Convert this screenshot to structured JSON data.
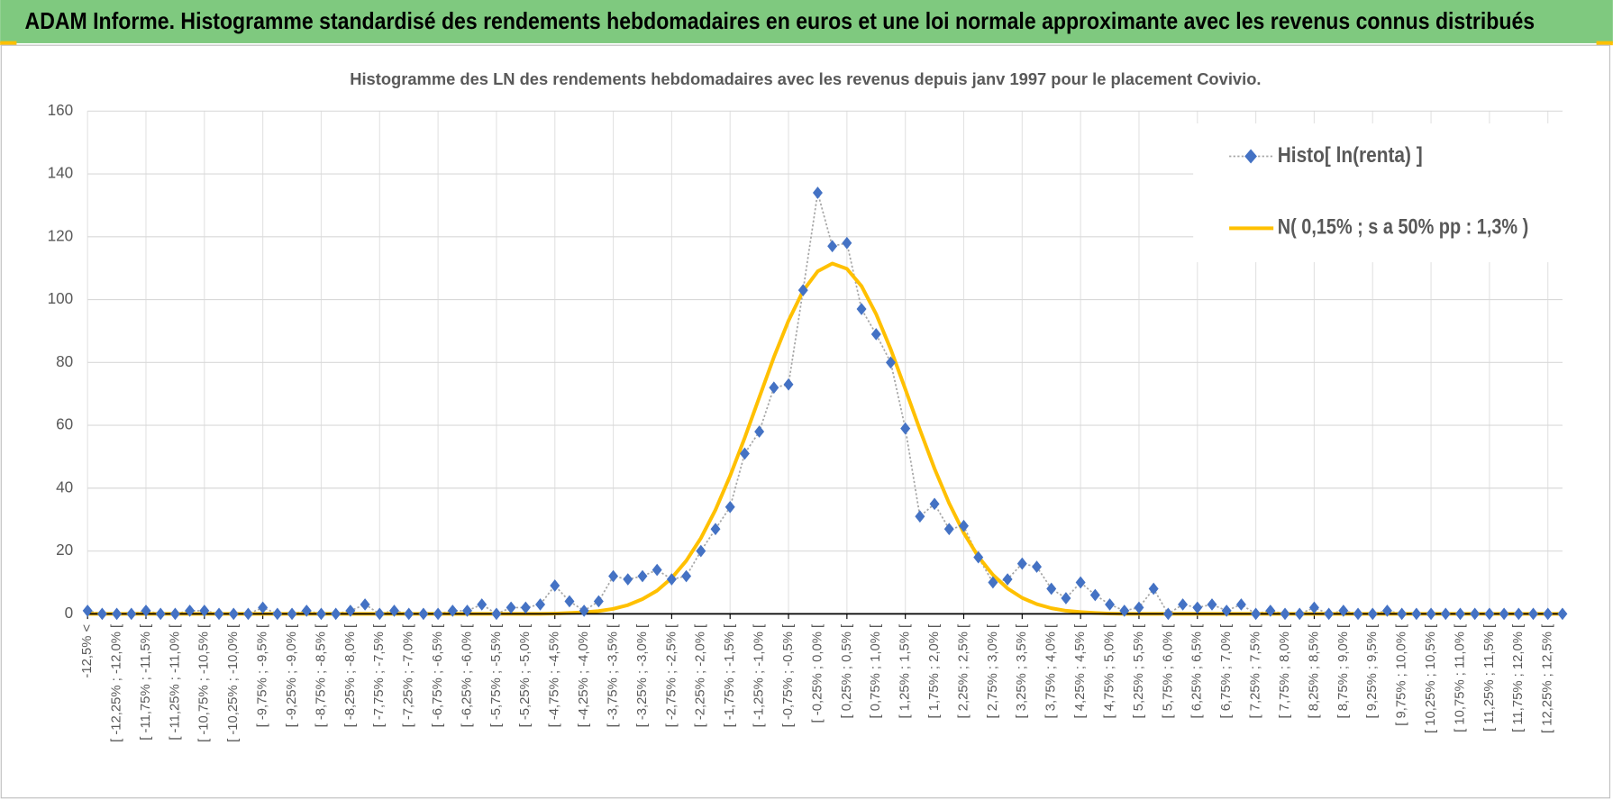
{
  "header": {
    "title": "ADAM Informe. Histogramme standardisé des rendements hebdomadaires en euros et une loi normale approximante avec les revenus connus distribués"
  },
  "chart_data": {
    "type": "line",
    "title": "Histogramme des LN des rendements hebdomadaires avec les revenus depuis janv 1997 pour le placement Covivio.",
    "categories": [
      "-12,5% <",
      null,
      "[ -12,25% ; -12,0% [",
      null,
      "[ -11,75% ; -11,5% [",
      null,
      "[ -11,25% ; -11,0% [",
      null,
      "[ -10,75% ; -10,5% [",
      null,
      "[ -10,25% ; -10,0% [",
      null,
      "[ -9,75% ; -9,5% [",
      null,
      "[ -9,25% ; -9,0% [",
      null,
      "[ -8,75% ; -8,5% [",
      null,
      "[ -8,25% ; -8,0% [",
      null,
      "[ -7,75% ; -7,5% [",
      null,
      "[ -7,25% ; -7,0% [",
      null,
      "[ -6,75% ; -6,5% [",
      null,
      "[ -6,25% ; -6,0% [",
      null,
      "[ -5,75% ; -5,5% [",
      null,
      "[ -5,25% ; -5,0% [",
      null,
      "[ -4,75% ; -4,5% [",
      null,
      "[ -4,25% ; -4,0% [",
      null,
      "[ -3,75% ; -3,5% [",
      null,
      "[ -3,25% ; -3,0% [",
      null,
      "[ -2,75% ; -2,5% [",
      null,
      "[ -2,25% ; -2,0% [",
      null,
      "[ -1,75% ; -1,5% [",
      null,
      "[ -1,25% ; -1,0% [",
      null,
      "[ -0,75% ; -0,5% [",
      null,
      "[ -0,25% ; 0,0% [",
      null,
      "[ 0,25% ; 0,5% [",
      null,
      "[ 0,75% ; 1,0% [",
      null,
      "[ 1,25% ; 1,5% [",
      null,
      "[ 1,75% ; 2,0% [",
      null,
      "[ 2,25% ; 2,5% [",
      null,
      "[ 2,75% ; 3,0% [",
      null,
      "[ 3,25% ; 3,5% [",
      null,
      "[ 3,75% ; 4,0% [",
      null,
      "[ 4,25% ; 4,5% [",
      null,
      "[ 4,75% ; 5,0% [",
      null,
      "[ 5,25% ; 5,5% [",
      null,
      "[ 5,75% ; 6,0% [",
      null,
      "[ 6,25% ; 6,5% [",
      null,
      "[ 6,75% ; 7,0% [",
      null,
      "[ 7,25% ; 7,5% [",
      null,
      "[ 7,75% ; 8,0% [",
      null,
      "[ 8,25% ; 8,5% [",
      null,
      "[ 8,75% ; 9,0% [",
      null,
      "[ 9,25% ; 9,5% [",
      null,
      "[ 9,75% ; 10,0% [",
      null,
      "[ 10,25% ; 10,5% [",
      null,
      "[ 10,75% ; 11,0% [",
      null,
      "[ 11,25% ; 11,5% [",
      null,
      "[ 11,75% ; 12,0% [",
      null,
      "[ 12,25% ; 12,5% [",
      null
    ],
    "series": [
      {
        "name": "Histo[ ln(renta) ]",
        "color": "#4472c4",
        "line_color": "#a6a6a6",
        "line_style": "dotted",
        "marker": "diamond",
        "values": [
          1,
          0,
          0,
          0,
          1,
          0,
          0,
          1,
          1,
          0,
          0,
          0,
          2,
          0,
          0,
          1,
          0,
          0,
          1,
          3,
          0,
          1,
          0,
          0,
          0,
          1,
          1,
          3,
          0,
          2,
          2,
          3,
          9,
          4,
          1,
          4,
          12,
          11,
          12,
          14,
          11,
          12,
          20,
          27,
          34,
          51,
          58,
          72,
          73,
          103,
          134,
          117,
          118,
          97,
          89,
          80,
          59,
          31,
          35,
          27,
          28,
          18,
          10,
          11,
          16,
          15,
          8,
          5,
          10,
          6,
          3,
          1,
          2,
          8,
          0,
          3,
          2,
          3,
          1,
          3,
          0,
          1,
          0,
          0,
          2,
          0,
          1,
          0,
          0,
          1,
          0,
          0,
          0,
          0,
          0,
          0,
          0,
          0,
          0,
          0,
          0,
          0
        ]
      },
      {
        "name": "N( 0,15% ; s a 50% pp : 1,3% )",
        "color": "#ffc000",
        "line_style": "solid",
        "marker": "none",
        "values": [
          0,
          0,
          0,
          0,
          0,
          0,
          0,
          0,
          0,
          0,
          0,
          0,
          0,
          0,
          0,
          0,
          0,
          0,
          0,
          0,
          0,
          0,
          0,
          0,
          0,
          0,
          0,
          0,
          0,
          0,
          0,
          0,
          0.1,
          0.3,
          0.5,
          0.9,
          1.6,
          2.8,
          4.7,
          7.4,
          11.4,
          16.9,
          24.1,
          33.1,
          43.9,
          56.0,
          68.9,
          81.7,
          93.3,
          102.8,
          109.0,
          111.5,
          109.8,
          104.3,
          95.4,
          84.2,
          71.5,
          58.6,
          46.2,
          35.2,
          25.8,
          18.2,
          12.4,
          8.1,
          5.1,
          3.1,
          1.8,
          1.0,
          0.6,
          0.3,
          0.1,
          0,
          0,
          0,
          0,
          0,
          0,
          0,
          0,
          0,
          0,
          0,
          0,
          0,
          0,
          0,
          0,
          0,
          0,
          0,
          0,
          0,
          0,
          0,
          0,
          0,
          0,
          0,
          0,
          0,
          0,
          0
        ]
      }
    ],
    "ylim": [
      0,
      160
    ],
    "yticks": [
      0,
      20,
      40,
      60,
      80,
      100,
      120,
      140,
      160
    ],
    "grid": true,
    "legend": "top-right"
  }
}
